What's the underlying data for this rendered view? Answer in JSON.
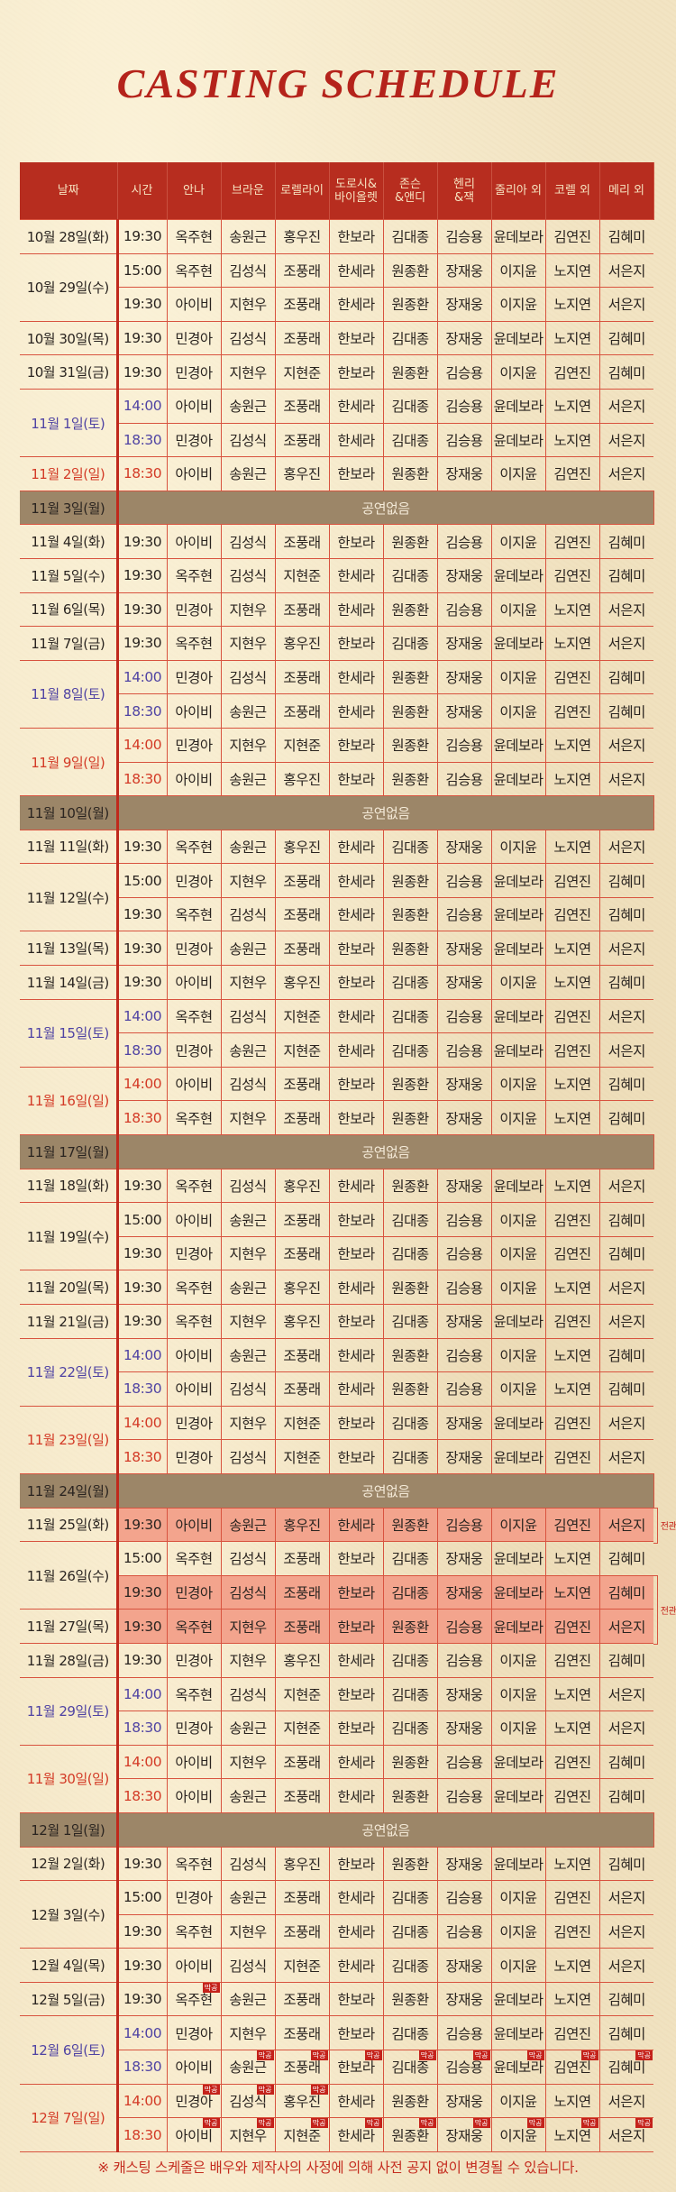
{
  "title": "CASTING SCHEDULE",
  "headers": [
    "날짜",
    "시간",
    "안나",
    "브라운",
    "로렐라이",
    "도로시&\n바이올렛",
    "존슨\n&앤디",
    "헨리\n&잭",
    "줄리아 외",
    "코렐 외",
    "메리 외"
  ],
  "no_show_label": "공연없음",
  "last_show_badge": "막공",
  "highlight_label": "전관",
  "colors": {
    "header": "#b72d1f",
    "saturday": "#4f43a3",
    "sunday": "#d33a26",
    "off_row": "#9c8668",
    "highlight": "#f3a48d",
    "badge": "#c4221b"
  },
  "days": [
    {
      "date": "10월 28일(화)",
      "type": "weekday",
      "shows": [
        {
          "time": "19:30",
          "cast": [
            "옥주현",
            "송원근",
            "홍우진",
            "한보라",
            "김대종",
            "김승용",
            "윤데보라",
            "김연진",
            "김혜미"
          ]
        }
      ]
    },
    {
      "date": "10월 29일(수)",
      "type": "weekday",
      "shows": [
        {
          "time": "15:00",
          "cast": [
            "옥주현",
            "김성식",
            "조풍래",
            "한세라",
            "원종환",
            "장재웅",
            "이지윤",
            "노지연",
            "서은지"
          ]
        },
        {
          "time": "19:30",
          "cast": [
            "아이비",
            "지현우",
            "조풍래",
            "한세라",
            "원종환",
            "장재웅",
            "이지윤",
            "노지연",
            "서은지"
          ]
        }
      ]
    },
    {
      "date": "10월 30일(목)",
      "type": "weekday",
      "shows": [
        {
          "time": "19:30",
          "cast": [
            "민경아",
            "김성식",
            "조풍래",
            "한보라",
            "김대종",
            "장재웅",
            "윤데보라",
            "노지연",
            "김혜미"
          ]
        }
      ]
    },
    {
      "date": "10월 31일(금)",
      "type": "weekday",
      "shows": [
        {
          "time": "19:30",
          "cast": [
            "민경아",
            "지현우",
            "지현준",
            "한보라",
            "원종환",
            "김승용",
            "이지윤",
            "김연진",
            "김혜미"
          ]
        }
      ]
    },
    {
      "date": "11월 1일(토)",
      "type": "sat",
      "shows": [
        {
          "time": "14:00",
          "cast": [
            "아이비",
            "송원근",
            "조풍래",
            "한세라",
            "김대종",
            "김승용",
            "윤데보라",
            "노지연",
            "서은지"
          ]
        },
        {
          "time": "18:30",
          "cast": [
            "민경아",
            "김성식",
            "조풍래",
            "한세라",
            "김대종",
            "김승용",
            "윤데보라",
            "노지연",
            "서은지"
          ]
        }
      ]
    },
    {
      "date": "11월 2일(일)",
      "type": "sun",
      "shows": [
        {
          "time": "18:30",
          "cast": [
            "아이비",
            "송원근",
            "홍우진",
            "한보라",
            "원종환",
            "장재웅",
            "이지윤",
            "김연진",
            "서은지"
          ]
        }
      ]
    },
    {
      "date": "11월 3일(월)",
      "type": "off",
      "shows": []
    },
    {
      "date": "11월 4일(화)",
      "type": "weekday",
      "shows": [
        {
          "time": "19:30",
          "cast": [
            "아이비",
            "김성식",
            "조풍래",
            "한보라",
            "원종환",
            "김승용",
            "이지윤",
            "김연진",
            "김혜미"
          ]
        }
      ]
    },
    {
      "date": "11월 5일(수)",
      "type": "weekday",
      "shows": [
        {
          "time": "19:30",
          "cast": [
            "옥주현",
            "김성식",
            "지현준",
            "한세라",
            "김대종",
            "장재웅",
            "윤데보라",
            "김연진",
            "김혜미"
          ]
        }
      ]
    },
    {
      "date": "11월 6일(목)",
      "type": "weekday",
      "shows": [
        {
          "time": "19:30",
          "cast": [
            "민경아",
            "지현우",
            "조풍래",
            "한세라",
            "원종환",
            "김승용",
            "이지윤",
            "노지연",
            "서은지"
          ]
        }
      ]
    },
    {
      "date": "11월 7일(금)",
      "type": "weekday",
      "shows": [
        {
          "time": "19:30",
          "cast": [
            "옥주현",
            "지현우",
            "홍우진",
            "한보라",
            "김대종",
            "장재웅",
            "윤데보라",
            "노지연",
            "서은지"
          ]
        }
      ]
    },
    {
      "date": "11월 8일(토)",
      "type": "sat",
      "shows": [
        {
          "time": "14:00",
          "cast": [
            "민경아",
            "김성식",
            "조풍래",
            "한세라",
            "원종환",
            "장재웅",
            "이지윤",
            "김연진",
            "김혜미"
          ]
        },
        {
          "time": "18:30",
          "cast": [
            "아이비",
            "송원근",
            "조풍래",
            "한세라",
            "원종환",
            "장재웅",
            "이지윤",
            "김연진",
            "김혜미"
          ]
        }
      ]
    },
    {
      "date": "11월 9일(일)",
      "type": "sun",
      "shows": [
        {
          "time": "14:00",
          "cast": [
            "민경아",
            "지현우",
            "지현준",
            "한보라",
            "원종환",
            "김승용",
            "윤데보라",
            "노지연",
            "서은지"
          ]
        },
        {
          "time": "18:30",
          "cast": [
            "아이비",
            "송원근",
            "홍우진",
            "한보라",
            "원종환",
            "김승용",
            "윤데보라",
            "노지연",
            "서은지"
          ]
        }
      ]
    },
    {
      "date": "11월 10일(월)",
      "type": "off",
      "shows": []
    },
    {
      "date": "11월 11일(화)",
      "type": "weekday",
      "shows": [
        {
          "time": "19:30",
          "cast": [
            "옥주현",
            "송원근",
            "홍우진",
            "한세라",
            "김대종",
            "장재웅",
            "이지윤",
            "노지연",
            "서은지"
          ]
        }
      ]
    },
    {
      "date": "11월 12일(수)",
      "type": "weekday",
      "shows": [
        {
          "time": "15:00",
          "cast": [
            "민경아",
            "지현우",
            "조풍래",
            "한세라",
            "원종환",
            "김승용",
            "윤데보라",
            "김연진",
            "김혜미"
          ]
        },
        {
          "time": "19:30",
          "cast": [
            "옥주현",
            "김성식",
            "조풍래",
            "한세라",
            "원종환",
            "김승용",
            "윤데보라",
            "김연진",
            "김혜미"
          ]
        }
      ]
    },
    {
      "date": "11월 13일(목)",
      "type": "weekday",
      "shows": [
        {
          "time": "19:30",
          "cast": [
            "민경아",
            "송원근",
            "조풍래",
            "한보라",
            "원종환",
            "장재웅",
            "윤데보라",
            "노지연",
            "서은지"
          ]
        }
      ]
    },
    {
      "date": "11월 14일(금)",
      "type": "weekday",
      "shows": [
        {
          "time": "19:30",
          "cast": [
            "아이비",
            "지현우",
            "홍우진",
            "한보라",
            "김대종",
            "장재웅",
            "이지윤",
            "노지연",
            "김혜미"
          ]
        }
      ]
    },
    {
      "date": "11월 15일(토)",
      "type": "sat",
      "shows": [
        {
          "time": "14:00",
          "cast": [
            "옥주현",
            "김성식",
            "지현준",
            "한세라",
            "김대종",
            "김승용",
            "윤데보라",
            "김연진",
            "서은지"
          ]
        },
        {
          "time": "18:30",
          "cast": [
            "민경아",
            "송원근",
            "지현준",
            "한세라",
            "김대종",
            "김승용",
            "윤데보라",
            "김연진",
            "서은지"
          ]
        }
      ]
    },
    {
      "date": "11월 16일(일)",
      "type": "sun",
      "shows": [
        {
          "time": "14:00",
          "cast": [
            "아이비",
            "김성식",
            "조풍래",
            "한보라",
            "원종환",
            "장재웅",
            "이지윤",
            "노지연",
            "김혜미"
          ]
        },
        {
          "time": "18:30",
          "cast": [
            "옥주현",
            "지현우",
            "조풍래",
            "한보라",
            "원종환",
            "장재웅",
            "이지윤",
            "노지연",
            "김혜미"
          ]
        }
      ]
    },
    {
      "date": "11월 17일(월)",
      "type": "off",
      "shows": []
    },
    {
      "date": "11월 18일(화)",
      "type": "weekday",
      "shows": [
        {
          "time": "19:30",
          "cast": [
            "옥주현",
            "김성식",
            "홍우진",
            "한세라",
            "원종환",
            "장재웅",
            "윤데보라",
            "노지연",
            "서은지"
          ]
        }
      ]
    },
    {
      "date": "11월 19일(수)",
      "type": "weekday",
      "shows": [
        {
          "time": "15:00",
          "cast": [
            "아이비",
            "송원근",
            "조풍래",
            "한보라",
            "김대종",
            "김승용",
            "이지윤",
            "김연진",
            "김혜미"
          ]
        },
        {
          "time": "19:30",
          "cast": [
            "민경아",
            "지현우",
            "조풍래",
            "한보라",
            "김대종",
            "김승용",
            "이지윤",
            "김연진",
            "김혜미"
          ]
        }
      ]
    },
    {
      "date": "11월 20일(목)",
      "type": "weekday",
      "shows": [
        {
          "time": "19:30",
          "cast": [
            "옥주현",
            "송원근",
            "홍우진",
            "한세라",
            "원종환",
            "김승용",
            "이지윤",
            "노지연",
            "서은지"
          ]
        }
      ]
    },
    {
      "date": "11월 21일(금)",
      "type": "weekday",
      "shows": [
        {
          "time": "19:30",
          "cast": [
            "옥주현",
            "지현우",
            "홍우진",
            "한보라",
            "김대종",
            "장재웅",
            "윤데보라",
            "김연진",
            "서은지"
          ]
        }
      ]
    },
    {
      "date": "11월 22일(토)",
      "type": "sat",
      "shows": [
        {
          "time": "14:00",
          "cast": [
            "아이비",
            "송원근",
            "조풍래",
            "한세라",
            "원종환",
            "김승용",
            "이지윤",
            "노지연",
            "김혜미"
          ]
        },
        {
          "time": "18:30",
          "cast": [
            "아이비",
            "김성식",
            "조풍래",
            "한세라",
            "원종환",
            "김승용",
            "이지윤",
            "노지연",
            "김혜미"
          ]
        }
      ]
    },
    {
      "date": "11월 23일(일)",
      "type": "sun",
      "shows": [
        {
          "time": "14:00",
          "cast": [
            "민경아",
            "지현우",
            "지현준",
            "한보라",
            "김대종",
            "장재웅",
            "윤데보라",
            "김연진",
            "서은지"
          ]
        },
        {
          "time": "18:30",
          "cast": [
            "민경아",
            "김성식",
            "지현준",
            "한보라",
            "김대종",
            "장재웅",
            "윤데보라",
            "김연진",
            "서은지"
          ]
        }
      ]
    },
    {
      "date": "11월 24일(월)",
      "type": "off",
      "shows": []
    },
    {
      "date": "11월 25일(화)",
      "type": "weekday",
      "shows": [
        {
          "time": "19:30",
          "highlight": true,
          "cast": [
            "아이비",
            "송원근",
            "홍우진",
            "한세라",
            "원종환",
            "김승용",
            "이지윤",
            "김연진",
            "서은지"
          ]
        }
      ]
    },
    {
      "date": "11월 26일(수)",
      "type": "weekday",
      "shows": [
        {
          "time": "15:00",
          "cast": [
            "옥주현",
            "김성식",
            "조풍래",
            "한보라",
            "김대종",
            "장재웅",
            "윤데보라",
            "노지연",
            "김혜미"
          ]
        },
        {
          "time": "19:30",
          "highlight": true,
          "cast": [
            "민경아",
            "김성식",
            "조풍래",
            "한보라",
            "김대종",
            "장재웅",
            "윤데보라",
            "노지연",
            "김혜미"
          ]
        }
      ]
    },
    {
      "date": "11월 27일(목)",
      "type": "weekday",
      "shows": [
        {
          "time": "19:30",
          "highlight": true,
          "cast": [
            "옥주현",
            "지현우",
            "조풍래",
            "한보라",
            "원종환",
            "김승용",
            "윤데보라",
            "김연진",
            "서은지"
          ]
        }
      ]
    },
    {
      "date": "11월 28일(금)",
      "type": "weekday",
      "shows": [
        {
          "time": "19:30",
          "cast": [
            "민경아",
            "지현우",
            "홍우진",
            "한세라",
            "김대종",
            "김승용",
            "이지윤",
            "김연진",
            "김혜미"
          ]
        }
      ]
    },
    {
      "date": "11월 29일(토)",
      "type": "sat",
      "shows": [
        {
          "time": "14:00",
          "cast": [
            "옥주현",
            "김성식",
            "지현준",
            "한보라",
            "김대종",
            "장재웅",
            "이지윤",
            "노지연",
            "서은지"
          ]
        },
        {
          "time": "18:30",
          "cast": [
            "민경아",
            "송원근",
            "지현준",
            "한보라",
            "김대종",
            "장재웅",
            "이지윤",
            "노지연",
            "서은지"
          ]
        }
      ]
    },
    {
      "date": "11월 30일(일)",
      "type": "sun",
      "shows": [
        {
          "time": "14:00",
          "cast": [
            "아이비",
            "지현우",
            "조풍래",
            "한세라",
            "원종환",
            "김승용",
            "윤데보라",
            "김연진",
            "김혜미"
          ]
        },
        {
          "time": "18:30",
          "cast": [
            "아이비",
            "송원근",
            "조풍래",
            "한세라",
            "원종환",
            "김승용",
            "윤데보라",
            "김연진",
            "김혜미"
          ]
        }
      ]
    },
    {
      "date": "12월 1일(월)",
      "type": "off",
      "shows": []
    },
    {
      "date": "12월 2일(화)",
      "type": "weekday",
      "shows": [
        {
          "time": "19:30",
          "cast": [
            "옥주현",
            "김성식",
            "홍우진",
            "한보라",
            "원종환",
            "장재웅",
            "윤데보라",
            "노지연",
            "김혜미"
          ]
        }
      ]
    },
    {
      "date": "12월 3일(수)",
      "type": "weekday",
      "shows": [
        {
          "time": "15:00",
          "cast": [
            "민경아",
            "송원근",
            "조풍래",
            "한세라",
            "김대종",
            "김승용",
            "이지윤",
            "김연진",
            "서은지"
          ]
        },
        {
          "time": "19:30",
          "cast": [
            "옥주현",
            "지현우",
            "조풍래",
            "한세라",
            "김대종",
            "김승용",
            "이지윤",
            "김연진",
            "서은지"
          ]
        }
      ]
    },
    {
      "date": "12월 4일(목)",
      "type": "weekday",
      "shows": [
        {
          "time": "19:30",
          "cast": [
            "아이비",
            "김성식",
            "지현준",
            "한세라",
            "김대종",
            "장재웅",
            "이지윤",
            "노지연",
            "서은지"
          ]
        }
      ]
    },
    {
      "date": "12월 5일(금)",
      "type": "weekday",
      "shows": [
        {
          "time": "19:30",
          "last_show": [
            0
          ],
          "cast": [
            "옥주현",
            "송원근",
            "조풍래",
            "한보라",
            "원종환",
            "장재웅",
            "윤데보라",
            "노지연",
            "김혜미"
          ]
        }
      ]
    },
    {
      "date": "12월 6일(토)",
      "type": "sat",
      "shows": [
        {
          "time": "14:00",
          "cast": [
            "민경아",
            "지현우",
            "조풍래",
            "한보라",
            "김대종",
            "김승용",
            "윤데보라",
            "김연진",
            "김혜미"
          ]
        },
        {
          "time": "18:30",
          "last_show": [
            1,
            2,
            3,
            4,
            5,
            6,
            7,
            8
          ],
          "cast": [
            "아이비",
            "송원근",
            "조풍래",
            "한보라",
            "김대종",
            "김승용",
            "윤데보라",
            "김연진",
            "김혜미"
          ]
        }
      ]
    },
    {
      "date": "12월 7일(일)",
      "type": "sun",
      "shows": [
        {
          "time": "14:00",
          "last_show": [
            0,
            1,
            2
          ],
          "cast": [
            "민경아",
            "김성식",
            "홍우진",
            "한세라",
            "원종환",
            "장재웅",
            "이지윤",
            "노지연",
            "서은지"
          ]
        },
        {
          "time": "18:30",
          "last_show": [
            0,
            1,
            2,
            3,
            4,
            5,
            6,
            7,
            8
          ],
          "cast": [
            "아이비",
            "지현우",
            "지현준",
            "한세라",
            "원종환",
            "장재웅",
            "이지윤",
            "노지연",
            "서은지"
          ]
        }
      ]
    }
  ],
  "footer": "※ 캐스팅 스케줄은 배우와 제작사의 사정에 의해 사전 공지 없이 변경될 수 있습니다."
}
